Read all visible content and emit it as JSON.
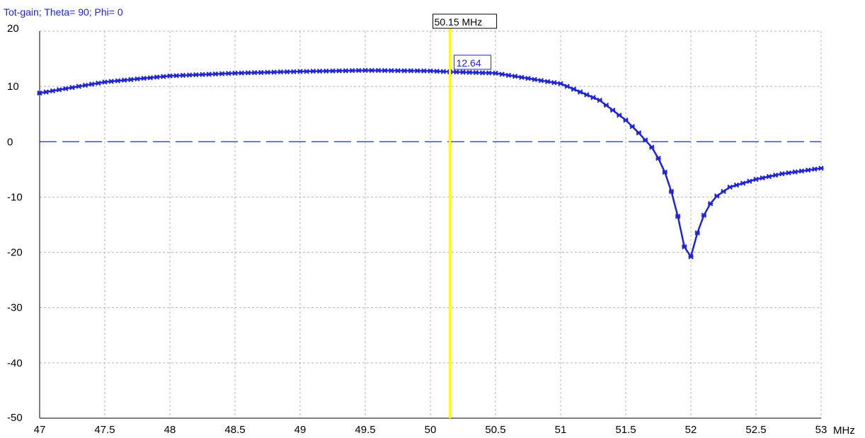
{
  "chart_data": {
    "type": "line",
    "title": "Tot-gain; Theta= 90; Phi= 0",
    "xlabel": "MHz",
    "ylabel": "",
    "xlim": [
      47,
      53
    ],
    "ylim": [
      -50,
      20
    ],
    "x_ticks": [
      "47",
      "47.5",
      "48",
      "48.5",
      "49",
      "49.5",
      "50",
      "50.5",
      "51",
      "51.5",
      "52",
      "52.5",
      "53"
    ],
    "y_ticks": [
      "20",
      "10",
      "0",
      "-10",
      "-20",
      "-30",
      "-40",
      "-50"
    ],
    "grid": true,
    "series": [
      {
        "color": "#1f24d6",
        "x": [
          47.0,
          47.5,
          48.0,
          48.5,
          49.0,
          49.5,
          50.0,
          50.15,
          50.5,
          51.0,
          51.3,
          51.5,
          51.6,
          51.7,
          51.75,
          51.8,
          51.85,
          51.9,
          51.95,
          52.0,
          52.05,
          52.1,
          52.15,
          52.2,
          52.3,
          52.5,
          52.7,
          53.0
        ],
        "values": [
          8.8,
          10.8,
          11.9,
          12.4,
          12.7,
          12.9,
          12.8,
          12.64,
          12.4,
          10.5,
          7.5,
          3.9,
          1.6,
          -1.0,
          -3.0,
          -5.5,
          -9.0,
          -13.5,
          -19.0,
          -20.8,
          -16.5,
          -13.3,
          -11.2,
          -9.8,
          -8.2,
          -6.8,
          -5.8,
          -4.8
        ]
      }
    ],
    "reference_line": {
      "y": 0,
      "style": "dashed",
      "color": "#1f24d6"
    },
    "cursor": {
      "x": 50.15,
      "label": "50.15 MHz",
      "value_label": "12.64",
      "color": "#ffff00"
    }
  }
}
